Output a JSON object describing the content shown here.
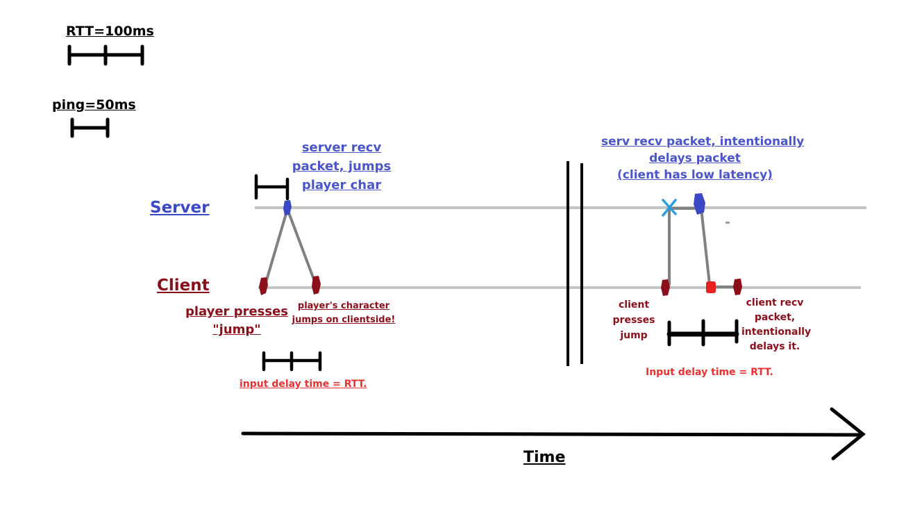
{
  "legend": {
    "rtt_label": "RTT=100ms",
    "ping_label": "ping=50ms"
  },
  "lanes": {
    "server": "Server",
    "client": "Client"
  },
  "left_scenario": {
    "server_note": [
      "server recv",
      "packet, jumps",
      "player char"
    ],
    "press_note": [
      "player presses",
      "\"jump\""
    ],
    "client_jump_note": [
      "player's character",
      "jumps on clientside!"
    ],
    "delay_caption": "input delay time = RTT."
  },
  "right_scenario": {
    "server_note": [
      "serv recv packet, intentionally",
      "delays packet",
      "(client has low latency)"
    ],
    "press_note": [
      "client",
      "presses",
      "jump"
    ],
    "client_recv_note": [
      "client recv",
      "packet,",
      "intentionally",
      "delays it."
    ],
    "delay_caption": "Input delay time = RTT."
  },
  "axis": {
    "label": "Time"
  },
  "colors": {
    "server_blue": "#3b48c4",
    "client_red": "#8b0f1a",
    "caption_red": "#e83131",
    "delay_marker_cyan": "#2a9ee0",
    "lane_gray": "#c4c4c4",
    "packet_gray": "#808080"
  }
}
